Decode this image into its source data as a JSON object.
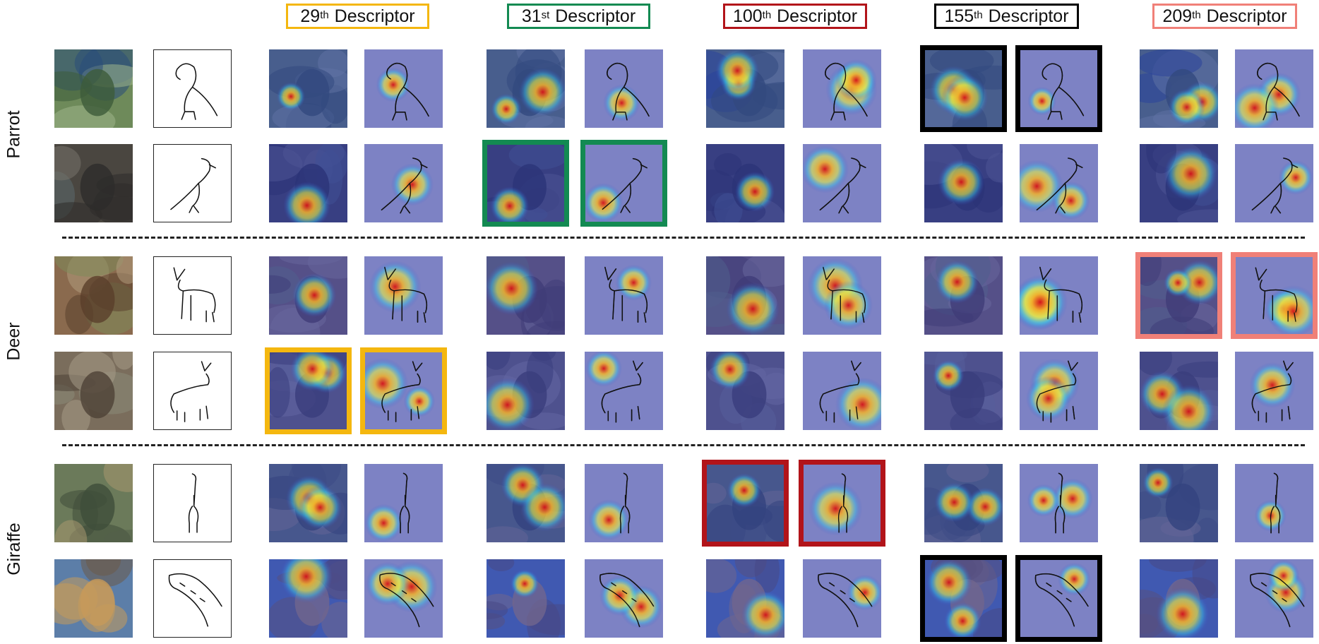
{
  "descriptors": [
    {
      "ordinal": "29",
      "suffix": "th",
      "label": " Descriptor",
      "color": "#f4b70f"
    },
    {
      "ordinal": "31",
      "suffix": "st",
      "label": " Descriptor",
      "color": "#138a52"
    },
    {
      "ordinal": "100",
      "suffix": "th",
      "label": " Descriptor",
      "color": "#b2141a"
    },
    {
      "ordinal": "155",
      "suffix": "th",
      "label": " Descriptor",
      "color": "#000000"
    },
    {
      "ordinal": "209",
      "suffix": "th",
      "label": " Descriptor",
      "color": "#f08078"
    }
  ],
  "groups": [
    {
      "label": "Parrot"
    },
    {
      "label": "Deer"
    },
    {
      "label": "Giraffe"
    }
  ],
  "highlights": [
    {
      "row": 0,
      "descriptor": 3,
      "color": "#000000"
    },
    {
      "row": 1,
      "descriptor": 1,
      "color": "#138a52"
    },
    {
      "row": 2,
      "descriptor": 4,
      "color": "#f08078"
    },
    {
      "row": 3,
      "descriptor": 0,
      "color": "#f4b70f"
    },
    {
      "row": 4,
      "descriptor": 2,
      "color": "#b2141a"
    },
    {
      "row": 5,
      "descriptor": 3,
      "color": "#000000"
    }
  ]
}
